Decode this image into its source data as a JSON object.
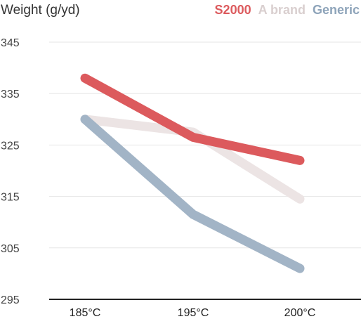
{
  "chart_data": {
    "type": "line",
    "ylabel": "Weight (g/yd)",
    "categories": [
      "185°C",
      "195°C",
      "200°C"
    ],
    "ylim": [
      295,
      345
    ],
    "yticks": [
      295,
      305,
      315,
      325,
      335,
      345
    ],
    "grid": true,
    "legend_position": "top-right",
    "series": [
      {
        "name": "A brand",
        "color": "#ece4e4",
        "values": [
          330,
          327.5,
          314.5
        ]
      },
      {
        "name": "Generic",
        "color": "#a2b4c6",
        "values": [
          330,
          311.5,
          301
        ]
      },
      {
        "name": "S2000",
        "color": "#dc5a5d",
        "values": [
          338,
          326.5,
          322
        ]
      }
    ]
  }
}
